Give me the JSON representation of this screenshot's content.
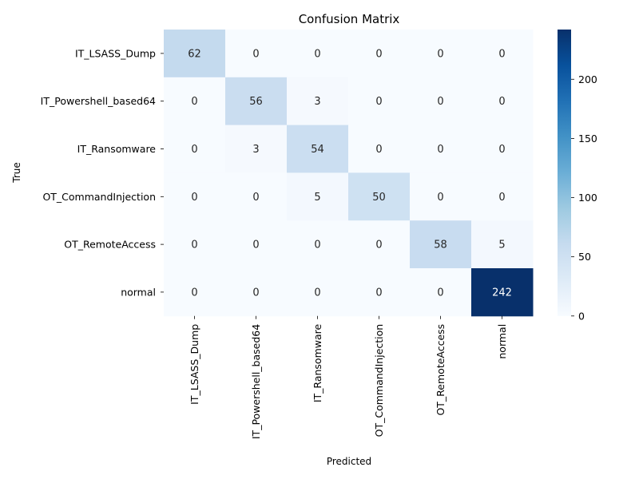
{
  "chart_data": {
    "type": "heatmap",
    "title": "Confusion Matrix",
    "xlabel": "Predicted",
    "ylabel": "True",
    "x_categories": [
      "IT_LSASS_Dump",
      "IT_Powershell_based64",
      "IT_Ransomware",
      "OT_CommandInjection",
      "OT_RemoteAccess",
      "normal"
    ],
    "y_categories": [
      "IT_LSASS_Dump",
      "IT_Powershell_based64",
      "IT_Ransomware",
      "OT_CommandInjection",
      "OT_RemoteAccess",
      "normal"
    ],
    "values": [
      [
        62,
        0,
        0,
        0,
        0,
        0
      ],
      [
        0,
        56,
        3,
        0,
        0,
        0
      ],
      [
        0,
        3,
        54,
        0,
        0,
        0
      ],
      [
        0,
        0,
        5,
        50,
        0,
        0
      ],
      [
        0,
        0,
        0,
        0,
        58,
        5
      ],
      [
        0,
        0,
        0,
        0,
        0,
        242
      ]
    ],
    "colormap": "Blues",
    "color_range": [
      0,
      242
    ],
    "colorbar_ticks": [
      0,
      50,
      100,
      150,
      200
    ],
    "annotations": true
  }
}
